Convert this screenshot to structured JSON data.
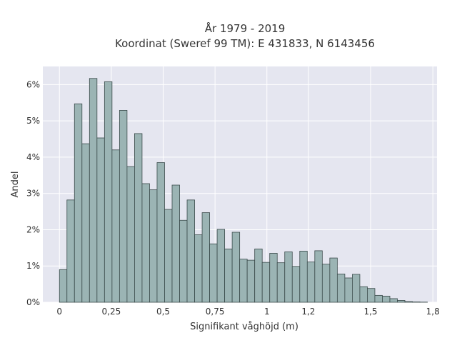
{
  "chart_data": {
    "type": "bar",
    "title": "År 1979 - 2019",
    "subtitle": "Koordinat (Sweref 99 TM): E 431833, N 6143456",
    "xlabel": "Signifikant våghöjd (m)",
    "ylabel": "Andel",
    "xlim": [
      -0.08,
      1.82
    ],
    "ylim": [
      0,
      6.5
    ],
    "grid": true,
    "x_ticks": [
      {
        "value": 0,
        "label": "0"
      },
      {
        "value": 0.25,
        "label": "0,25"
      },
      {
        "value": 0.5,
        "label": "0,5"
      },
      {
        "value": 0.75,
        "label": "0,75"
      },
      {
        "value": 1,
        "label": "1"
      },
      {
        "value": 1.2,
        "label": "1,2"
      },
      {
        "value": 1.5,
        "label": "1,5"
      },
      {
        "value": 1.8,
        "label": "1,8"
      }
    ],
    "y_ticks": [
      {
        "value": 0,
        "label": "0%"
      },
      {
        "value": 1,
        "label": "1%"
      },
      {
        "value": 2,
        "label": "2%"
      },
      {
        "value": 3,
        "label": "3%"
      },
      {
        "value": 4,
        "label": "4%"
      },
      {
        "value": 5,
        "label": "5%"
      },
      {
        "value": 6,
        "label": "6%"
      }
    ],
    "bin_width": 0.0362,
    "x": [
      0,
      0.0362,
      0.0724,
      0.1086,
      0.1448,
      0.181,
      0.2172,
      0.2534,
      0.2896,
      0.3258,
      0.362,
      0.3982,
      0.4344,
      0.4706,
      0.5068,
      0.543,
      0.5792,
      0.6154,
      0.6516,
      0.6878,
      0.724,
      0.7602,
      0.7964,
      0.8326,
      0.8688,
      0.905,
      0.9412,
      0.9774,
      1.0136,
      1.0498,
      1.086,
      1.1222,
      1.1584,
      1.1946,
      1.2308,
      1.267,
      1.3032,
      1.3394,
      1.3756,
      1.4118,
      1.448,
      1.4842,
      1.5204,
      1.5566,
      1.5928,
      1.629,
      1.6652,
      1.7014,
      1.7376
    ],
    "values": [
      0.9,
      2.82,
      5.47,
      4.37,
      6.17,
      4.53,
      6.08,
      4.2,
      5.29,
      3.74,
      4.65,
      3.27,
      3.1,
      3.85,
      2.56,
      3.23,
      2.26,
      2.82,
      1.86,
      2.47,
      1.61,
      2.01,
      1.47,
      1.93,
      1.19,
      1.16,
      1.47,
      1.1,
      1.35,
      1.09,
      1.39,
      0.99,
      1.41,
      1.11,
      1.42,
      1.05,
      1.22,
      0.78,
      0.67,
      0.77,
      0.43,
      0.38,
      0.19,
      0.17,
      0.1,
      0.05,
      0.02,
      0.01,
      0.005
    ]
  },
  "colors": {
    "plot_bg": "#e5e6f0",
    "bar_fill": "#9bb4b4",
    "bar_stroke": "#3a4a4a",
    "grid": "#ffffff",
    "text": "#333333"
  }
}
